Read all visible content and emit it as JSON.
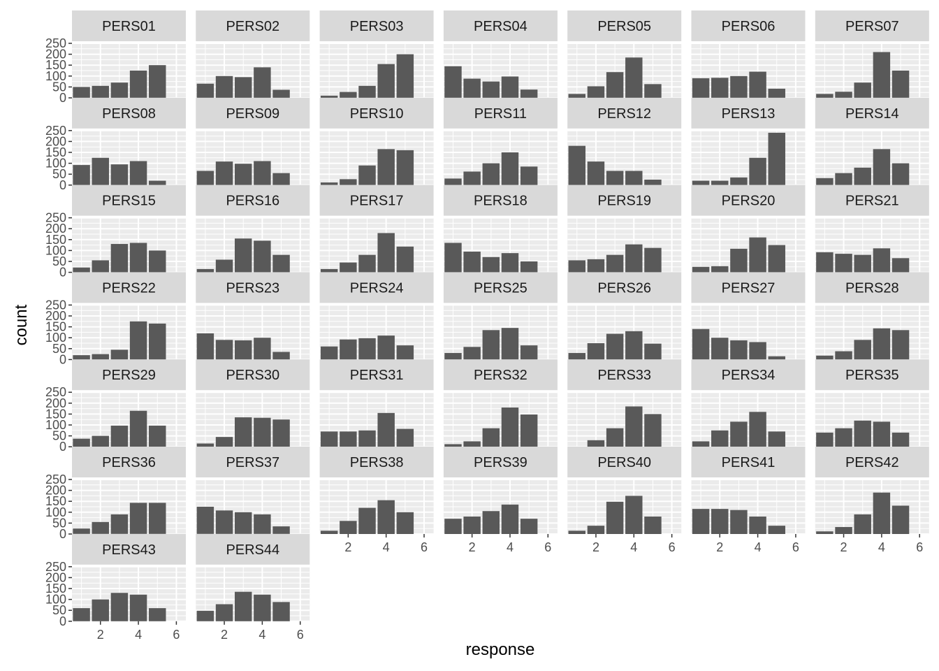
{
  "chart_data": {
    "type": "bar",
    "xlabel": "response",
    "ylabel": "count",
    "x": [
      1,
      2,
      3,
      4,
      5
    ],
    "xlim": [
      0.5,
      6.5
    ],
    "ylim": [
      0,
      250
    ],
    "x_ticks": [
      2,
      4,
      6
    ],
    "y_ticks": [
      0,
      50,
      100,
      150,
      200,
      250
    ],
    "grid": true,
    "layout": "facet grid, 7 columns",
    "colors": {
      "bar": "#595959",
      "panel_bg": "#ebebeb",
      "strip_bg": "#d9d9d9",
      "grid": "#ffffff"
    },
    "facets": [
      {
        "label": "PERS01",
        "values": [
          50,
          55,
          70,
          125,
          150
        ]
      },
      {
        "label": "PERS02",
        "values": [
          65,
          100,
          95,
          140,
          37
        ]
      },
      {
        "label": "PERS03",
        "values": [
          10,
          27,
          55,
          155,
          200
        ]
      },
      {
        "label": "PERS04",
        "values": [
          145,
          88,
          75,
          98,
          38
        ]
      },
      {
        "label": "PERS05",
        "values": [
          18,
          53,
          118,
          185,
          63
        ]
      },
      {
        "label": "PERS06",
        "values": [
          90,
          92,
          100,
          120,
          42
        ]
      },
      {
        "label": "PERS07",
        "values": [
          18,
          28,
          70,
          210,
          125
        ]
      },
      {
        "label": "PERS08",
        "values": [
          92,
          125,
          95,
          110,
          20
        ]
      },
      {
        "label": "PERS09",
        "values": [
          65,
          108,
          98,
          110,
          55
        ]
      },
      {
        "label": "PERS10",
        "values": [
          12,
          27,
          90,
          165,
          160
        ]
      },
      {
        "label": "PERS11",
        "values": [
          30,
          62,
          100,
          150,
          85
        ]
      },
      {
        "label": "PERS12",
        "values": [
          180,
          108,
          65,
          65,
          25
        ]
      },
      {
        "label": "PERS13",
        "values": [
          20,
          20,
          35,
          125,
          240
        ]
      },
      {
        "label": "PERS14",
        "values": [
          32,
          55,
          80,
          165,
          100
        ]
      },
      {
        "label": "PERS15",
        "values": [
          22,
          55,
          130,
          135,
          100
        ]
      },
      {
        "label": "PERS16",
        "values": [
          15,
          58,
          155,
          145,
          80
        ]
      },
      {
        "label": "PERS17",
        "values": [
          15,
          45,
          80,
          180,
          118
        ]
      },
      {
        "label": "PERS18",
        "values": [
          135,
          95,
          70,
          88,
          50
        ]
      },
      {
        "label": "PERS19",
        "values": [
          55,
          60,
          80,
          128,
          112
        ]
      },
      {
        "label": "PERS20",
        "values": [
          25,
          28,
          108,
          160,
          125
        ]
      },
      {
        "label": "PERS21",
        "values": [
          92,
          85,
          80,
          110,
          65
        ]
      },
      {
        "label": "PERS22",
        "values": [
          20,
          25,
          45,
          175,
          165
        ]
      },
      {
        "label": "PERS23",
        "values": [
          120,
          90,
          88,
          100,
          35
        ]
      },
      {
        "label": "PERS24",
        "values": [
          60,
          92,
          98,
          110,
          65
        ]
      },
      {
        "label": "PERS25",
        "values": [
          30,
          58,
          135,
          145,
          65
        ]
      },
      {
        "label": "PERS26",
        "values": [
          30,
          75,
          118,
          130,
          73
        ]
      },
      {
        "label": "PERS27",
        "values": [
          140,
          100,
          88,
          80,
          15
        ]
      },
      {
        "label": "PERS28",
        "values": [
          18,
          38,
          90,
          143,
          135
        ]
      },
      {
        "label": "PERS29",
        "values": [
          37,
          50,
          97,
          165,
          97
        ]
      },
      {
        "label": "PERS30",
        "values": [
          15,
          45,
          135,
          133,
          125
        ]
      },
      {
        "label": "PERS31",
        "values": [
          70,
          70,
          75,
          155,
          82
        ]
      },
      {
        "label": "PERS32",
        "values": [
          12,
          25,
          85,
          180,
          148
        ]
      },
      {
        "label": "PERS33",
        "values": [
          0,
          30,
          85,
          185,
          150
        ]
      },
      {
        "label": "PERS34",
        "values": [
          25,
          75,
          115,
          160,
          70
        ]
      },
      {
        "label": "PERS35",
        "values": [
          65,
          85,
          120,
          115,
          65
        ]
      },
      {
        "label": "PERS36",
        "values": [
          25,
          55,
          90,
          143,
          143
        ]
      },
      {
        "label": "PERS37",
        "values": [
          125,
          108,
          100,
          90,
          35
        ]
      },
      {
        "label": "PERS38",
        "values": [
          15,
          60,
          120,
          155,
          100
        ]
      },
      {
        "label": "PERS39",
        "values": [
          70,
          80,
          105,
          135,
          70
        ]
      },
      {
        "label": "PERS40",
        "values": [
          15,
          38,
          148,
          175,
          80
        ]
      },
      {
        "label": "PERS41",
        "values": [
          115,
          115,
          110,
          80,
          38
        ]
      },
      {
        "label": "PERS42",
        "values": [
          12,
          32,
          90,
          190,
          130
        ]
      },
      {
        "label": "PERS43",
        "values": [
          60,
          100,
          130,
          122,
          60
        ]
      },
      {
        "label": "PERS44",
        "values": [
          48,
          78,
          135,
          122,
          88
        ]
      }
    ]
  }
}
